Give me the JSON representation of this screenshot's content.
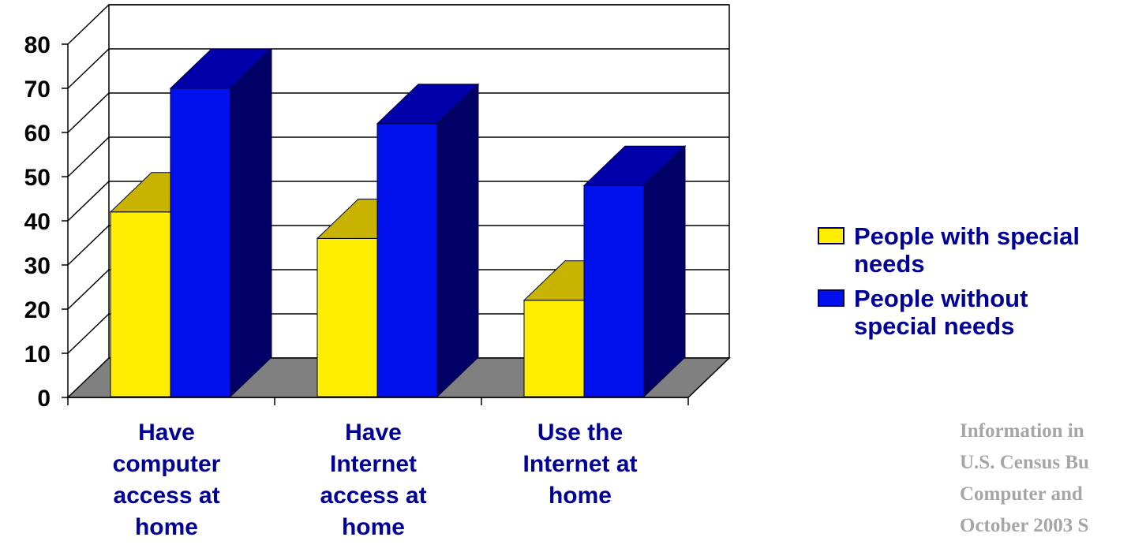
{
  "chart_data": {
    "type": "bar",
    "categories": [
      "Have computer access at home",
      "Have Internet access at home",
      "Use the Internet at home"
    ],
    "category_lines": [
      [
        "Have",
        "computer",
        "access at",
        "home"
      ],
      [
        "Have",
        "Internet",
        "access at",
        "home"
      ],
      [
        "Use the",
        "Internet at",
        "home"
      ]
    ],
    "series": [
      {
        "name": "People with special needs",
        "legend_lines": [
          "People with special",
          "needs"
        ],
        "values": [
          42,
          36,
          22
        ],
        "color": "#ffee00",
        "top_color": "#c8b400",
        "side_color": "#a89600"
      },
      {
        "name": "People without special needs",
        "legend_lines": [
          "People without",
          "special needs"
        ],
        "values": [
          70,
          62,
          48
        ],
        "color": "#0011ee",
        "top_color": "#0000aa",
        "side_color": "#000066"
      }
    ],
    "ylim": [
      0,
      80
    ],
    "yticks": [
      "0",
      "10",
      "20",
      "30",
      "40",
      "50",
      "60",
      "70",
      "80"
    ],
    "grid": true,
    "legend_position": "right",
    "title": "",
    "xlabel": "",
    "ylabel": ""
  },
  "source_note": {
    "lines": [
      "Information in",
      "U.S. Census Bu",
      "Computer and",
      "October 2003 S"
    ]
  }
}
